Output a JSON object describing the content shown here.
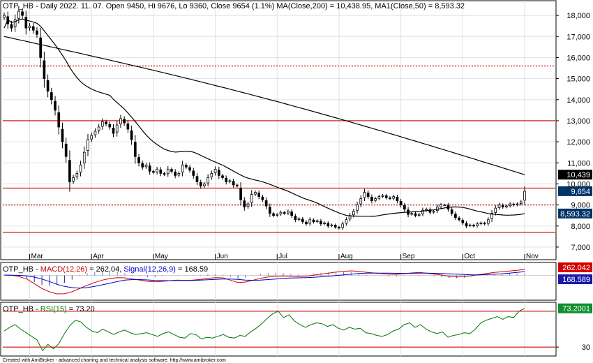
{
  "header": {
    "main": "OTP_HB - Daily 2022. 11. 07. Open 9450, Hi 9676, Lo 9360, Close 9654 (1.1%) MA(Close,200) = 10,438.95, MA1(Close,50) = 8,593.32",
    "macd_ticker": "OTP_HB - ",
    "macd_label": "MACD(12,26)",
    "macd_value": " = 262.04, ",
    "signal_label": "Signal(12,26,9)",
    "signal_value": " = 168.59",
    "rsi_ticker": "OTP_HB - ",
    "rsi_label": "RSI(15)",
    "rsi_value": " = 73.20"
  },
  "footer": "Created with AmiBroker - advanced charting and technical analysis software. http://www.amibroker.com",
  "colors": {
    "price": "#000000",
    "macd": "#d00000",
    "signal": "#0000cc",
    "rsi": "#007700",
    "hline": "#cc0000",
    "badge_dark": "#000000",
    "badge_blue": "#003366",
    "badge_red": "#d40000",
    "badge_navy": "#1a1aa8",
    "badge_green": "#0e8f2e"
  },
  "chart_data": [
    {
      "type": "candlestick",
      "x_tick_labels": [
        "Mar",
        "Apr",
        "May",
        "Jun",
        "Jul",
        "Aug",
        "Sep",
        "Oct",
        "Nov"
      ],
      "y_ticks": [
        7000,
        8000,
        9000,
        10000,
        11000,
        12000,
        13000,
        14000,
        15000,
        16000,
        17000,
        18000
      ],
      "y_tick_labels": [
        "7,000",
        "8,000",
        "9,000",
        "10,000",
        "11,000",
        "12,000",
        "13,000",
        "14,000",
        "15,000",
        "16,000",
        "17,000",
        "18,000"
      ],
      "ylim": [
        6600,
        18500
      ],
      "close": [
        18000,
        17600,
        17400,
        17800,
        18200,
        18000,
        17400,
        17500,
        17300,
        17100,
        16000,
        15000,
        14400,
        14000,
        13500,
        12700,
        12000,
        11300,
        10100,
        10300,
        10500,
        10900,
        11500,
        12100,
        12300,
        12500,
        12700,
        12950,
        12850,
        12700,
        12400,
        12800,
        13100,
        12900,
        12600,
        12100,
        11300,
        11000,
        10800,
        10900,
        10600,
        10550,
        10700,
        10500,
        10450,
        10700,
        10600,
        10400,
        10500,
        10900,
        10800,
        10650,
        10400,
        10100,
        9900,
        10000,
        10300,
        10500,
        10700,
        10400,
        10300,
        10100,
        10150,
        9950,
        9900,
        9250,
        8900,
        9050,
        9500,
        9600,
        9400,
        9250,
        8950,
        8600,
        8500,
        8550,
        8650,
        8600,
        8700,
        8500,
        8300,
        8350,
        8200,
        8100,
        8300,
        8200,
        8250,
        8100,
        8150,
        8000,
        8050,
        7950,
        7900,
        8100,
        8300,
        8500,
        8700,
        9000,
        9300,
        9600,
        9400,
        9200,
        9300,
        9400,
        9450,
        9350,
        9300,
        9400,
        9200,
        9000,
        8800,
        8550,
        8600,
        8500,
        8550,
        8750,
        8800,
        8650,
        8700,
        8900,
        9000,
        9000,
        8800,
        8600,
        8400,
        8300,
        8150,
        8000,
        8050,
        8000,
        8100,
        8150,
        8100,
        8300,
        8600,
        8850,
        9000,
        8900,
        8950,
        9050,
        9000,
        9050,
        9150,
        9654
      ],
      "ma_200": [
        17000,
        10438.95
      ],
      "ma_50": [
        17400,
        8593.32
      ],
      "value_badges": [
        {
          "value": 10439,
          "label": "10,439"
        },
        {
          "value": 9654,
          "label": "9,654"
        },
        {
          "value": 8593.32,
          "label": "8,593.32"
        }
      ],
      "support_resistance_lines": [
        {
          "value": 15600,
          "style": "dotted"
        },
        {
          "value": 13000,
          "style": "solid"
        },
        {
          "value": 9800,
          "style": "solid"
        },
        {
          "value": 9000,
          "style": "dotted"
        },
        {
          "value": 7700,
          "style": "solid"
        }
      ]
    },
    {
      "type": "line",
      "series": [
        {
          "name": "MACD(12,26)",
          "values": [
            20,
            10,
            -50,
            -150,
            -350,
            -560,
            -700,
            -790,
            -780,
            -700,
            -560,
            -420,
            -300,
            -200,
            -130,
            -90,
            -100,
            -150,
            -200,
            -250,
            -270,
            -250,
            -220,
            -200,
            -210,
            -200,
            -170,
            -120,
            -90,
            -100,
            -200,
            -300,
            -280,
            -200,
            -120,
            -60,
            -30,
            -20,
            -40,
            -50,
            -30,
            10,
            60,
            100,
            150,
            180,
            200,
            180,
            140,
            110,
            90,
            60,
            50,
            80,
            110,
            130,
            100,
            60,
            20,
            -30,
            -60,
            -50,
            -10,
            40,
            90,
            130,
            160,
            190,
            220,
            262
          ]
        },
        {
          "name": "Signal(12,26,9)",
          "values": [
            20,
            15,
            5,
            -20,
            -70,
            -150,
            -260,
            -380,
            -470,
            -520,
            -540,
            -520,
            -470,
            -400,
            -330,
            -260,
            -200,
            -175,
            -175,
            -190,
            -210,
            -220,
            -220,
            -215,
            -215,
            -210,
            -200,
            -185,
            -165,
            -150,
            -150,
            -170,
            -195,
            -205,
            -195,
            -175,
            -150,
            -125,
            -110,
            -100,
            -90,
            -75,
            -55,
            -30,
            0,
            30,
            60,
            85,
            100,
            105,
            105,
            100,
            95,
            92,
            95,
            100,
            100,
            95,
            85,
            70,
            55,
            40,
            30,
            30,
            40,
            55,
            75,
            100,
            130,
            168.59
          ]
        }
      ],
      "value_badges": [
        {
          "value": 262.042,
          "label": "262.042"
        },
        {
          "value": 168.589,
          "label": "168.589"
        }
      ],
      "ylim": [
        -1000,
        500
      ]
    },
    {
      "type": "line",
      "series": [
        {
          "name": "RSI(15)",
          "values": [
            48,
            52,
            55,
            50,
            46,
            42,
            38,
            26,
            33,
            28,
            34,
            45,
            54,
            60,
            58,
            52,
            48,
            46,
            50,
            47,
            44,
            47,
            49,
            46,
            44,
            45,
            46,
            44,
            42,
            45,
            47,
            44,
            41,
            40,
            45,
            44,
            39,
            41,
            40,
            42,
            44,
            41,
            40,
            43,
            42,
            47,
            51,
            56,
            62,
            67,
            70,
            63,
            66,
            59,
            55,
            52,
            55,
            57,
            56,
            53,
            55,
            51,
            49,
            52,
            50,
            51,
            46,
            45,
            43,
            42,
            44,
            48,
            50,
            55,
            57,
            52,
            55,
            50,
            47,
            45,
            47,
            41,
            43,
            44,
            46,
            45,
            50,
            57,
            60,
            62,
            64,
            61,
            64,
            63,
            70,
            73.2
          ]
        }
      ],
      "y_ticks": [
        30
      ],
      "y_tick_labels": [
        "30"
      ],
      "hlines": [
        70,
        30
      ],
      "value_badges": [
        {
          "value": 73.2001,
          "label": "73.2001"
        }
      ],
      "ylim": [
        20,
        80
      ]
    }
  ]
}
